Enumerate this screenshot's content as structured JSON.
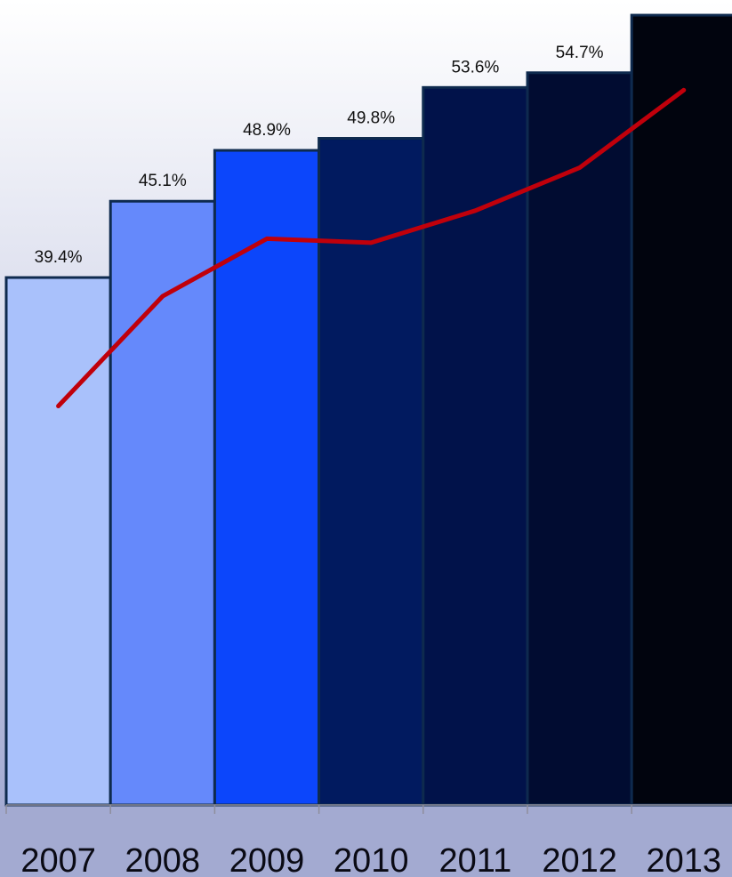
{
  "chart_data": {
    "type": "bar",
    "title": "",
    "xlabel": "",
    "ylabel": "",
    "categories": [
      "2007",
      "2008",
      "2009",
      "2010",
      "2011",
      "2012",
      "2013"
    ],
    "series": [
      {
        "values": [
          39.4,
          45.1,
          48.9,
          49.8,
          53.6,
          54.7,
          59.0
        ],
        "labels": [
          "39.4%",
          "45.1%",
          "48.9%",
          "49.8%",
          "53.6%",
          "54.7%",
          ""
        ]
      },
      {
        "type": "line",
        "values": [
          29.8,
          38.0,
          42.3,
          42.0,
          44.4,
          47.6,
          53.4
        ]
      }
    ],
    "ylim": [
      0,
      60
    ],
    "grid": false,
    "legend": "none",
    "bar_colors": [
      "#a9c1fb",
      "#6589fb",
      "#0c46fb",
      "#011a5f",
      "#01124a",
      "#010c31",
      "#01040e"
    ],
    "bar_outline_color": "#0e2a4e",
    "line_color": "#c0000b",
    "axis_band_color": "#a3aad1",
    "background_gradient": [
      "#ffffff",
      "#9ca4cf"
    ]
  }
}
